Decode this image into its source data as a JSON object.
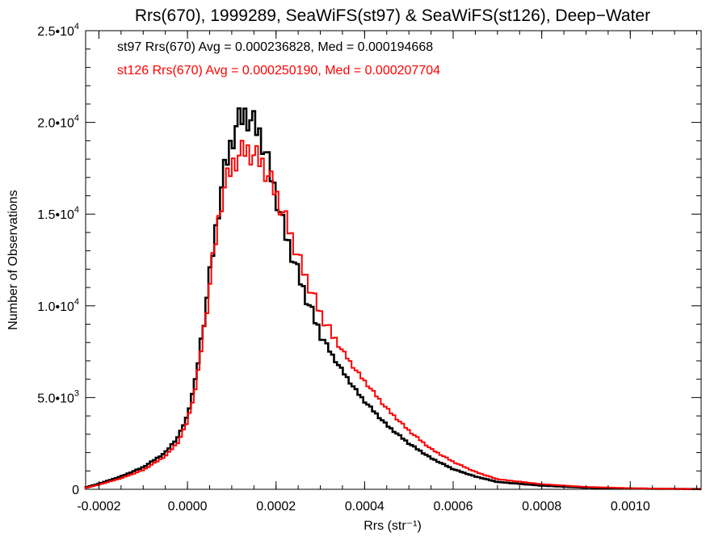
{
  "chart_data": {
    "type": "line",
    "style": "histogram-steps",
    "title": "Rrs(670), 1999289, SeaWiFS(st97) & SeaWiFS(st126), Deep−Water",
    "xlabel": "Rrs (str⁻¹)",
    "ylabel": "Number of Observations",
    "xlim": [
      -0.00023,
      0.00116
    ],
    "ylim": [
      0,
      25000
    ],
    "x_ticks": [
      {
        "value": -0.0002,
        "label": "-0.0002"
      },
      {
        "value": 0.0,
        "label": "0.0000"
      },
      {
        "value": 0.0002,
        "label": "0.0002"
      },
      {
        "value": 0.0004,
        "label": "0.0004"
      },
      {
        "value": 0.0006,
        "label": "0.0006"
      },
      {
        "value": 0.0008,
        "label": "0.0008"
      },
      {
        "value": 0.001,
        "label": "0.0010"
      }
    ],
    "y_ticks": [
      {
        "value": 0,
        "mant": "0",
        "exp": ""
      },
      {
        "value": 5000,
        "mant": "5.0•10",
        "exp": "3"
      },
      {
        "value": 10000,
        "mant": "1.0•10",
        "exp": "4"
      },
      {
        "value": 15000,
        "mant": "1.5•10",
        "exp": "4"
      },
      {
        "value": 20000,
        "mant": "2.0•10",
        "exp": "4"
      },
      {
        "value": 25000,
        "mant": "2.5•10",
        "exp": "4"
      }
    ],
    "grid": false,
    "legend_position": "top-left",
    "series": [
      {
        "name": "st97 Rrs(670) Avg = 0.000236828, Med = 0.000194668",
        "color": "#000000",
        "x": [
          -0.00023,
          -0.0002,
          -0.00015,
          -0.0001,
          -5e-05,
          -2e-05,
          0.0,
          2e-05,
          4e-05,
          6e-05,
          8e-05,
          0.0001,
          0.00011,
          0.00012,
          0.00013,
          0.00014,
          0.00015,
          0.00016,
          0.00017,
          0.00018,
          0.00019,
          0.0002,
          0.00022,
          0.00024,
          0.00026,
          0.00028,
          0.0003,
          0.00032,
          0.00034,
          0.00036,
          0.00038,
          0.0004,
          0.00045,
          0.0005,
          0.00055,
          0.0006,
          0.00065,
          0.0007,
          0.0008,
          0.0009,
          0.001,
          0.0011,
          0.00116
        ],
        "y": [
          100,
          300,
          700,
          1200,
          2000,
          2900,
          4000,
          6200,
          9700,
          13500,
          17000,
          19000,
          19800,
          20200,
          20400,
          20200,
          19900,
          19500,
          18900,
          18000,
          17000,
          16000,
          14000,
          12500,
          11000,
          9700,
          8500,
          7600,
          6800,
          6100,
          5400,
          4800,
          3500,
          2500,
          1700,
          1100,
          700,
          400,
          200,
          90,
          40,
          20,
          10
        ]
      },
      {
        "name": "st126 Rrs(670) Avg = 0.000250190, Med = 0.000207704",
        "color": "#ff0000",
        "x": [
          -0.00023,
          -0.0002,
          -0.00015,
          -0.0001,
          -5e-05,
          -2e-05,
          0.0,
          2e-05,
          4e-05,
          6e-05,
          8e-05,
          0.0001,
          0.00011,
          0.00012,
          0.00013,
          0.00014,
          0.00015,
          0.00016,
          0.00017,
          0.00018,
          0.00019,
          0.0002,
          0.00022,
          0.00024,
          0.00026,
          0.00028,
          0.0003,
          0.00032,
          0.00034,
          0.00036,
          0.00038,
          0.0004,
          0.00045,
          0.0005,
          0.00055,
          0.0006,
          0.00065,
          0.0007,
          0.0008,
          0.0009,
          0.001,
          0.0011,
          0.00116
        ],
        "y": [
          80,
          250,
          600,
          1050,
          1800,
          2600,
          3700,
          5700,
          9200,
          13000,
          16200,
          17600,
          18000,
          18300,
          18500,
          18400,
          18200,
          18000,
          17700,
          17200,
          16700,
          16100,
          14800,
          13400,
          12000,
          10800,
          9600,
          8700,
          7900,
          7200,
          6500,
          5900,
          4400,
          3200,
          2200,
          1500,
          950,
          550,
          280,
          130,
          60,
          25,
          10
        ]
      }
    ]
  }
}
